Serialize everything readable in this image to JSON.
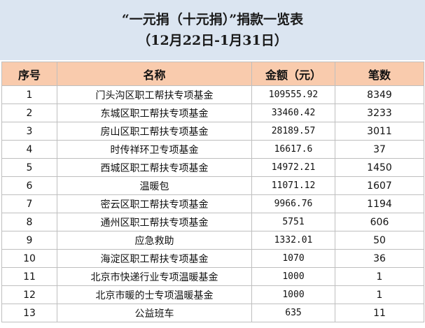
{
  "title": {
    "line1": "“一元捐（十元捐）”捐款一览表",
    "line2": "（12月22日-1月31日）"
  },
  "table": {
    "headers": [
      "序号",
      "名称",
      "金额（元）",
      "笔数"
    ],
    "rows": [
      {
        "idx": "1",
        "name": "门头沟区职工帮扶专项基金",
        "amount": "109555.92",
        "count": "8349"
      },
      {
        "idx": "2",
        "name": "东城区职工帮扶专项基金",
        "amount": "33460.42",
        "count": "3233"
      },
      {
        "idx": "3",
        "name": "房山区职工帮扶专项基金",
        "amount": "28189.57",
        "count": "3011"
      },
      {
        "idx": "4",
        "name": "时传祥环卫专项基金",
        "amount": "16617.6",
        "count": "37"
      },
      {
        "idx": "5",
        "name": "西城区职工帮扶专项基金",
        "amount": "14972.21",
        "count": "1450"
      },
      {
        "idx": "6",
        "name": "温暖包",
        "amount": "11071.12",
        "count": "1607"
      },
      {
        "idx": "7",
        "name": "密云区职工帮扶专项基金",
        "amount": "9966.76",
        "count": "1194"
      },
      {
        "idx": "8",
        "name": "通州区职工帮扶专项基金",
        "amount": "5751",
        "count": "606"
      },
      {
        "idx": "9",
        "name": "应急救助",
        "amount": "1332.01",
        "count": "50"
      },
      {
        "idx": "10",
        "name": "海淀区职工帮扶专项基金",
        "amount": "1070",
        "count": "36"
      },
      {
        "idx": "11",
        "name": "北京市快递行业专项温暖基金",
        "amount": "1000",
        "count": "1"
      },
      {
        "idx": "12",
        "name": "北京市暖的士专项温暖基金",
        "amount": "1000",
        "count": "1"
      },
      {
        "idx": "13",
        "name": "公益班车",
        "amount": "635",
        "count": "11"
      }
    ]
  },
  "colors": {
    "title_background": "#dbe5f1",
    "header_background": "#f9cbad",
    "grid_line": "#bfbfbf"
  }
}
